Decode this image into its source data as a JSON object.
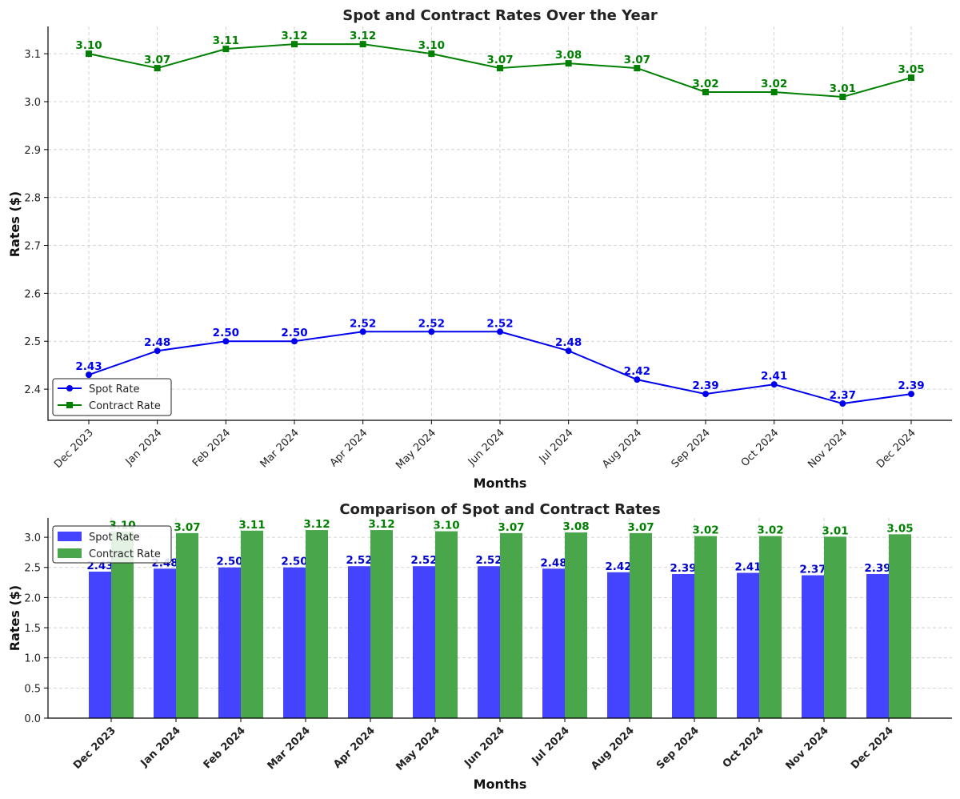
{
  "chart_data": [
    {
      "type": "line",
      "title": "Spot and Contract Rates Over the Year",
      "xlabel": "Months",
      "ylabel": "Rates ($)",
      "categories": [
        "Dec 2023",
        "Jan 2024",
        "Feb 2024",
        "Mar 2024",
        "Apr 2024",
        "May 2024",
        "Jun 2024",
        "Jul 2024",
        "Aug 2024",
        "Sep 2024",
        "Oct 2024",
        "Nov 2024",
        "Dec 2024"
      ],
      "yticks": [
        "2.4",
        "2.5",
        "2.6",
        "2.7",
        "2.8",
        "2.9",
        "3.0",
        "3.1"
      ],
      "ylim": [
        2.335,
        3.157
      ],
      "grid": true,
      "legend": "lower-left",
      "series": [
        {
          "name": "Spot Rate",
          "color": "#0000ee",
          "marker": "circle",
          "values": [
            2.43,
            2.48,
            2.5,
            2.5,
            2.52,
            2.52,
            2.52,
            2.48,
            2.42,
            2.39,
            2.41,
            2.37,
            2.39
          ]
        },
        {
          "name": "Contract Rate",
          "color": "#008000",
          "marker": "square",
          "values": [
            3.1,
            3.07,
            3.11,
            3.12,
            3.12,
            3.1,
            3.07,
            3.08,
            3.07,
            3.02,
            3.02,
            3.01,
            3.05
          ]
        }
      ]
    },
    {
      "type": "bar",
      "title": "Comparison of Spot and Contract Rates",
      "xlabel": "Months",
      "ylabel": "Rates ($)",
      "categories": [
        "Dec 2023",
        "Jan 2024",
        "Feb 2024",
        "Mar 2024",
        "Apr 2024",
        "May 2024",
        "Jun 2024",
        "Jul 2024",
        "Aug 2024",
        "Sep 2024",
        "Oct 2024",
        "Nov 2024",
        "Dec 2024"
      ],
      "yticks": [
        "0.0",
        "0.5",
        "1.0",
        "1.5",
        "2.0",
        "2.5",
        "3.0"
      ],
      "ylim": [
        0,
        3.32
      ],
      "grid": true,
      "legend": "upper-left",
      "series": [
        {
          "name": "Spot Rate",
          "color": "#4444ff",
          "label_color": "#0000cc",
          "values": [
            2.43,
            2.48,
            2.5,
            2.5,
            2.52,
            2.52,
            2.52,
            2.48,
            2.42,
            2.39,
            2.41,
            2.37,
            2.39
          ]
        },
        {
          "name": "Contract Rate",
          "color": "#4aa64a",
          "label_color": "#008000",
          "values": [
            3.1,
            3.07,
            3.11,
            3.12,
            3.12,
            3.1,
            3.07,
            3.08,
            3.07,
            3.02,
            3.02,
            3.01,
            3.05
          ]
        }
      ]
    }
  ]
}
